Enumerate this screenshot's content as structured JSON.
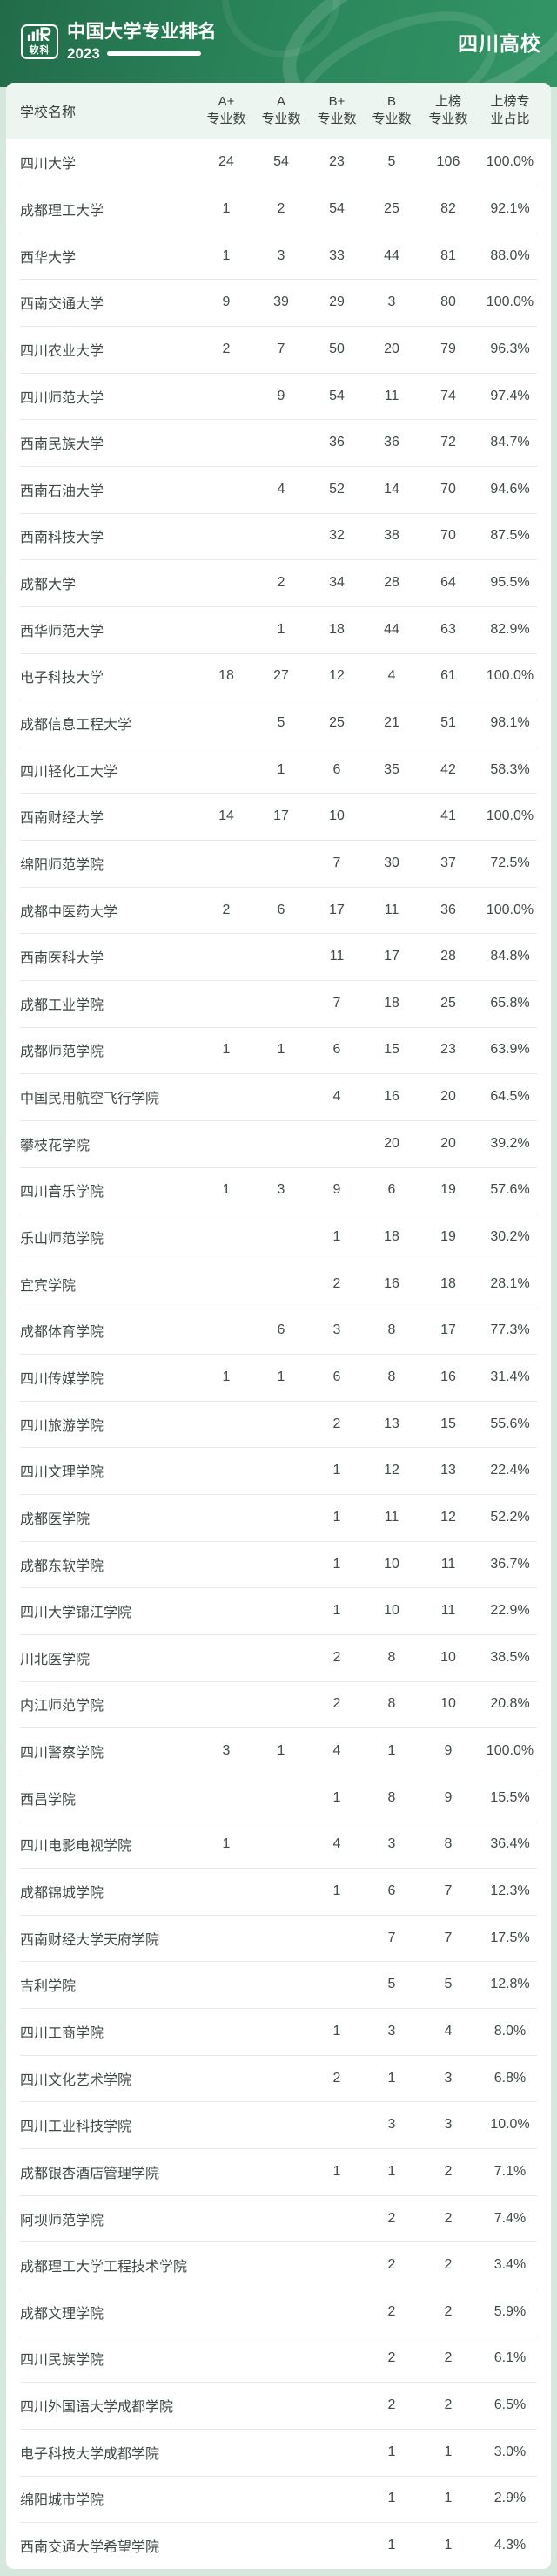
{
  "banner": {
    "logo_text": "软科",
    "title": "中国大学专业排名",
    "year": "2023",
    "region": "四川高校"
  },
  "table": {
    "school_header": "学校名称",
    "columns": [
      {
        "line1": "A+",
        "line2": "专业数"
      },
      {
        "line1": "A",
        "line2": "专业数"
      },
      {
        "line1": "B+",
        "line2": "专业数"
      },
      {
        "line1": "B",
        "line2": "专业数"
      },
      {
        "line1": "上榜",
        "line2": "专业数"
      },
      {
        "line1": "上榜专",
        "line2": "业占比"
      }
    ]
  },
  "colors": {
    "banner_green_dark": "#226b49",
    "banner_green": "#2a855a",
    "banner_green_light": "#339566",
    "page_bg": "#d6e8dd",
    "card_bg": "#ffffff",
    "header_row_bg": "#ecf5f0",
    "header_text": "#35423b",
    "data_text": "#404a44",
    "separator": "#e6e9e7"
  },
  "chart_data": {
    "type": "table",
    "title": "中国大学专业排名 2023 四川高校",
    "columns": [
      "学校名称",
      "A+专业数",
      "A专业数",
      "B+专业数",
      "B专业数",
      "上榜专业数",
      "上榜专业占比"
    ],
    "rows": [
      [
        "四川大学",
        24,
        54,
        23,
        5,
        106,
        "100.0%"
      ],
      [
        "成都理工大学",
        1,
        2,
        54,
        25,
        82,
        "92.1%"
      ],
      [
        "西华大学",
        1,
        3,
        33,
        44,
        81,
        "88.0%"
      ],
      [
        "西南交通大学",
        9,
        39,
        29,
        3,
        80,
        "100.0%"
      ],
      [
        "四川农业大学",
        2,
        7,
        50,
        20,
        79,
        "96.3%"
      ],
      [
        "四川师范大学",
        null,
        9,
        54,
        11,
        74,
        "97.4%"
      ],
      [
        "西南民族大学",
        null,
        null,
        36,
        36,
        72,
        "84.7%"
      ],
      [
        "西南石油大学",
        null,
        4,
        52,
        14,
        70,
        "94.6%"
      ],
      [
        "西南科技大学",
        null,
        null,
        32,
        38,
        70,
        "87.5%"
      ],
      [
        "成都大学",
        null,
        2,
        34,
        28,
        64,
        "95.5%"
      ],
      [
        "西华师范大学",
        null,
        1,
        18,
        44,
        63,
        "82.9%"
      ],
      [
        "电子科技大学",
        18,
        27,
        12,
        4,
        61,
        "100.0%"
      ],
      [
        "成都信息工程大学",
        null,
        5,
        25,
        21,
        51,
        "98.1%"
      ],
      [
        "四川轻化工大学",
        null,
        1,
        6,
        35,
        42,
        "58.3%"
      ],
      [
        "西南财经大学",
        14,
        17,
        10,
        null,
        41,
        "100.0%"
      ],
      [
        "绵阳师范学院",
        null,
        null,
        7,
        30,
        37,
        "72.5%"
      ],
      [
        "成都中医药大学",
        2,
        6,
        17,
        11,
        36,
        "100.0%"
      ],
      [
        "西南医科大学",
        null,
        null,
        11,
        17,
        28,
        "84.8%"
      ],
      [
        "成都工业学院",
        null,
        null,
        7,
        18,
        25,
        "65.8%"
      ],
      [
        "成都师范学院",
        1,
        1,
        6,
        15,
        23,
        "63.9%"
      ],
      [
        "中国民用航空飞行学院",
        null,
        null,
        4,
        16,
        20,
        "64.5%"
      ],
      [
        "攀枝花学院",
        null,
        null,
        null,
        20,
        20,
        "39.2%"
      ],
      [
        "四川音乐学院",
        1,
        3,
        9,
        6,
        19,
        "57.6%"
      ],
      [
        "乐山师范学院",
        null,
        null,
        1,
        18,
        19,
        "30.2%"
      ],
      [
        "宜宾学院",
        null,
        null,
        2,
        16,
        18,
        "28.1%"
      ],
      [
        "成都体育学院",
        null,
        6,
        3,
        8,
        17,
        "77.3%"
      ],
      [
        "四川传媒学院",
        1,
        1,
        6,
        8,
        16,
        "31.4%"
      ],
      [
        "四川旅游学院",
        null,
        null,
        2,
        13,
        15,
        "55.6%"
      ],
      [
        "四川文理学院",
        null,
        null,
        1,
        12,
        13,
        "22.4%"
      ],
      [
        "成都医学院",
        null,
        null,
        1,
        11,
        12,
        "52.2%"
      ],
      [
        "成都东软学院",
        null,
        null,
        1,
        10,
        11,
        "36.7%"
      ],
      [
        "四川大学锦江学院",
        null,
        null,
        1,
        10,
        11,
        "22.9%"
      ],
      [
        "川北医学院",
        null,
        null,
        2,
        8,
        10,
        "38.5%"
      ],
      [
        "内江师范学院",
        null,
        null,
        2,
        8,
        10,
        "20.8%"
      ],
      [
        "四川警察学院",
        3,
        1,
        4,
        1,
        9,
        "100.0%"
      ],
      [
        "西昌学院",
        null,
        null,
        1,
        8,
        9,
        "15.5%"
      ],
      [
        "四川电影电视学院",
        1,
        null,
        4,
        3,
        8,
        "36.4%"
      ],
      [
        "成都锦城学院",
        null,
        null,
        1,
        6,
        7,
        "12.3%"
      ],
      [
        "西南财经大学天府学院",
        null,
        null,
        null,
        7,
        7,
        "17.5%"
      ],
      [
        "吉利学院",
        null,
        null,
        null,
        5,
        5,
        "12.8%"
      ],
      [
        "四川工商学院",
        null,
        null,
        1,
        3,
        4,
        "8.0%"
      ],
      [
        "四川文化艺术学院",
        null,
        null,
        2,
        1,
        3,
        "6.8%"
      ],
      [
        "四川工业科技学院",
        null,
        null,
        null,
        3,
        3,
        "10.0%"
      ],
      [
        "成都银杏酒店管理学院",
        null,
        null,
        1,
        1,
        2,
        "7.1%"
      ],
      [
        "阿坝师范学院",
        null,
        null,
        null,
        2,
        2,
        "7.4%"
      ],
      [
        "成都理工大学工程技术学院",
        null,
        null,
        null,
        2,
        2,
        "3.4%"
      ],
      [
        "成都文理学院",
        null,
        null,
        null,
        2,
        2,
        "5.9%"
      ],
      [
        "四川民族学院",
        null,
        null,
        null,
        2,
        2,
        "6.1%"
      ],
      [
        "四川外国语大学成都学院",
        null,
        null,
        null,
        2,
        2,
        "6.5%"
      ],
      [
        "电子科技大学成都学院",
        null,
        null,
        null,
        1,
        1,
        "3.0%"
      ],
      [
        "绵阳城市学院",
        null,
        null,
        null,
        1,
        1,
        "2.9%"
      ],
      [
        "西南交通大学希望学院",
        null,
        null,
        null,
        1,
        1,
        "4.3%"
      ]
    ]
  }
}
